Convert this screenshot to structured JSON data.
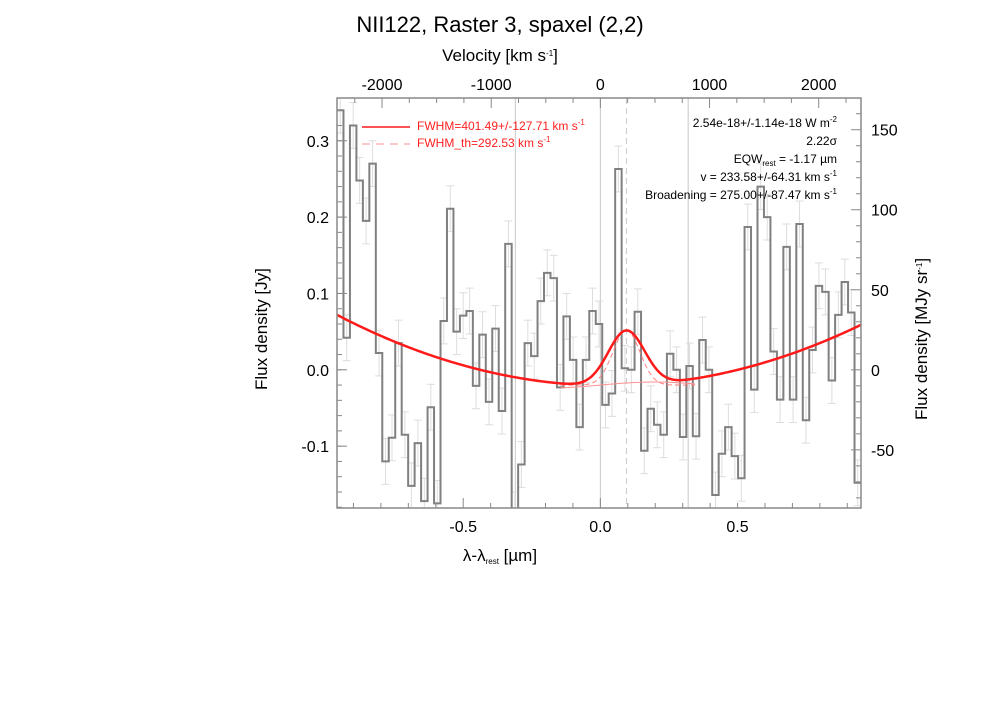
{
  "chart_data": {
    "type": "line",
    "title": "NII122, Raster 3, spaxel (2,2)",
    "xlabel": {
      "main": "λ-λ",
      "sub": "rest",
      "unit": " [µm]"
    },
    "ylabel": "Flux density [Jy]",
    "ylabel_right": {
      "main": "Flux density [MJy sr",
      "sup": "-1",
      "end": "]"
    },
    "xlabel_top": {
      "main": "Velocity [km s",
      "sup": "-1",
      "end": "]"
    },
    "xlim": [
      -0.96,
      0.95
    ],
    "ylim": [
      -0.181,
      0.356
    ],
    "right_axis_scale_mjysr_per_jy": 477,
    "top_axis_kms_per_um": 2513,
    "xticks": [
      "-0.5",
      "0.0",
      "0.5"
    ],
    "xtick_values": [
      -0.5,
      0.0,
      0.5
    ],
    "yticks": [
      "-0.1",
      "0.0",
      "0.1",
      "0.2",
      "0.3"
    ],
    "ytick_values": [
      -0.1,
      0.0,
      0.1,
      0.2,
      0.3
    ],
    "yticks_right": [
      "-50",
      "0",
      "50",
      "100",
      "150"
    ],
    "ytick_right_values": [
      -50,
      0,
      50,
      100,
      150
    ],
    "xticks_top": [
      "-2000",
      "-1000",
      "0",
      "1000",
      "2000"
    ],
    "xtick_top_values": [
      -2000,
      -1000,
      0,
      1000,
      2000
    ],
    "grid": "vertical lines at -0.31, 0.0, 0.32; dashed at line center",
    "spectrum": {
      "name": "observed flux (histogram)",
      "x_start": -0.96,
      "bin_width": 0.02358,
      "error": 0.03,
      "values": [
        0.34,
        0.042,
        0.32,
        0.248,
        0.195,
        0.27,
        0.022,
        -0.12,
        -0.089,
        0.035,
        -0.085,
        -0.152,
        -0.096,
        -0.172,
        -0.049,
        -0.175,
        0.064,
        0.211,
        0.05,
        0.071,
        0.077,
        -0.021,
        0.046,
        -0.042,
        0.054,
        -0.054,
        0.165,
        -0.19,
        -0.124,
        0.035,
        0.018,
        0.09,
        0.127,
        0.12,
        -0.023,
        0.07,
        0.013,
        -0.075,
        0.013,
        0.077,
        0.06,
        -0.046,
        -0.031,
        0.263,
        0.002,
        0.0,
        0.076,
        -0.106,
        -0.051,
        -0.072,
        -0.085,
        0.021,
        0.0,
        -0.088,
        0.005,
        -0.087,
        0.039,
        0.0,
        -0.164,
        -0.11,
        -0.075,
        -0.113,
        -0.142,
        0.187,
        -0.026,
        0.24,
        0.2,
        0.024,
        -0.039,
        0.161,
        -0.039,
        0.191,
        -0.066,
        0.026,
        0.11,
        0.102,
        -0.014,
        0.072,
        0.115,
        0.075,
        -0.148
      ]
    },
    "fit": {
      "name": "baseline + gaussian",
      "baseline_poly": [
        -0.0207,
        -0.0059,
        0.0944
      ],
      "center": 0.095,
      "amplitude": 0.072,
      "fwhm_um": 0.157,
      "fwhm_th_um": 0.115
    },
    "legend": [
      {
        "label": "FWHM=401.49+/-127.71 km s",
        "sup": "-1",
        "style": "solid"
      },
      {
        "label": "FWHM_th=292.53 km s",
        "sup": "-1",
        "style": "dashed"
      }
    ],
    "annotations": {
      "flux": {
        "main": "2.54e-18+/-1.14e-18 W m",
        "sup": "-2"
      },
      "snr": "2.22σ",
      "eqw": {
        "main": "EQW",
        "sub": "rest",
        "end": " = -1.17 µm"
      },
      "velocity": {
        "main": "v = 233.58+/-64.31 km s",
        "sup": "-1"
      },
      "broadening": {
        "main": "Broadening = 275.00+/-87.47 km s",
        "sup": "-1"
      }
    }
  },
  "colors": {
    "spectrum": "#808080",
    "fit": "#ff1a1a",
    "errorbar": "#dddddd",
    "grid": "#c8c8c8",
    "axis": "#888888"
  }
}
